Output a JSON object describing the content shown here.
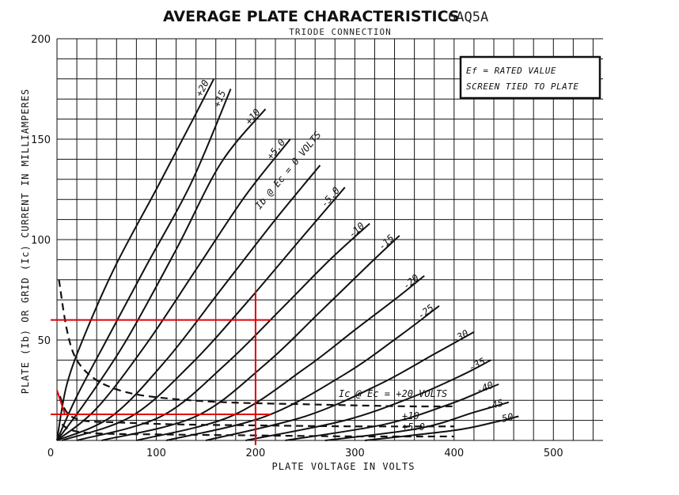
{
  "chart_data": {
    "type": "line",
    "title": "AVERAGE PLATE CHARACTERISTICS",
    "tube_type": "6AQ5A",
    "subtitle": "TRIODE CONNECTION",
    "xlabel": "PLATE VOLTAGE IN VOLTS",
    "ylabel": "PLATE (Ib) OR GRID (Ic) CURRENT IN MILLIAMPERES",
    "xlim": [
      0,
      550
    ],
    "ylim": [
      0,
      200
    ],
    "x_ticks": [
      "0",
      "100",
      "200",
      "300",
      "400",
      "500"
    ],
    "y_ticks": [
      "50",
      "100",
      "150",
      "200"
    ],
    "grid": true,
    "notes": [
      "Ef = RATED VALUE",
      "SCREEN TIED TO PLATE"
    ],
    "plate_family_label": "Ib @ Ec = 0 VOLTS",
    "grid_family_label": "Ic @ Ec = +20 VOLTS",
    "plate_curves": [
      {
        "label": "+20",
        "points": [
          [
            0,
            0
          ],
          [
            10,
            28
          ],
          [
            30,
            55
          ],
          [
            60,
            88
          ],
          [
            100,
            125
          ],
          [
            135,
            158
          ],
          [
            158,
            180
          ]
        ]
      },
      {
        "label": "+15",
        "points": [
          [
            0,
            0
          ],
          [
            20,
            22
          ],
          [
            50,
            50
          ],
          [
            90,
            87
          ],
          [
            135,
            128
          ],
          [
            175,
            175
          ]
        ]
      },
      {
        "label": "+10",
        "points": [
          [
            0,
            0
          ],
          [
            30,
            20
          ],
          [
            70,
            50
          ],
          [
            120,
            95
          ],
          [
            165,
            138
          ],
          [
            210,
            165
          ]
        ]
      },
      {
        "label": "+5.0",
        "points": [
          [
            0,
            0
          ],
          [
            40,
            16
          ],
          [
            90,
            48
          ],
          [
            140,
            85
          ],
          [
            190,
            122
          ],
          [
            235,
            150
          ]
        ]
      },
      {
        "label": "0",
        "points": [
          [
            0,
            0
          ],
          [
            55,
            12
          ],
          [
            110,
            40
          ],
          [
            165,
            75
          ],
          [
            220,
            110
          ],
          [
            265,
            137
          ]
        ]
      },
      {
        "label": "-5.0",
        "points": [
          [
            5,
            0
          ],
          [
            75,
            12
          ],
          [
            135,
            38
          ],
          [
            190,
            68
          ],
          [
            245,
            100
          ],
          [
            290,
            126
          ]
        ]
      },
      {
        "label": "-10",
        "points": [
          [
            20,
            0
          ],
          [
            105,
            12
          ],
          [
            170,
            38
          ],
          [
            225,
            65
          ],
          [
            275,
            90
          ],
          [
            315,
            108
          ]
        ]
      },
      {
        "label": "-15",
        "points": [
          [
            45,
            0
          ],
          [
            140,
            12
          ],
          [
            210,
            38
          ],
          [
            265,
            64
          ],
          [
            315,
            88
          ],
          [
            345,
            102
          ]
        ]
      },
      {
        "label": "-20",
        "points": [
          [
            80,
            0
          ],
          [
            175,
            12
          ],
          [
            250,
            36
          ],
          [
            300,
            55
          ],
          [
            345,
            72
          ],
          [
            370,
            82
          ]
        ]
      },
      {
        "label": "-25",
        "points": [
          [
            110,
            0
          ],
          [
            210,
            12
          ],
          [
            290,
            33
          ],
          [
            345,
            52
          ],
          [
            385,
            67
          ]
        ]
      },
      {
        "label": "-30",
        "points": [
          [
            150,
            0
          ],
          [
            250,
            12
          ],
          [
            325,
            28
          ],
          [
            380,
            43
          ],
          [
            420,
            54
          ]
        ]
      },
      {
        "label": "-35",
        "points": [
          [
            190,
            0
          ],
          [
            290,
            10
          ],
          [
            360,
            22
          ],
          [
            410,
            33
          ],
          [
            437,
            40
          ]
        ]
      },
      {
        "label": "-40",
        "points": [
          [
            230,
            0
          ],
          [
            330,
            8
          ],
          [
            395,
            18
          ],
          [
            430,
            25
          ],
          [
            445,
            28
          ]
        ]
      },
      {
        "label": "-45",
        "points": [
          [
            270,
            0
          ],
          [
            365,
            6
          ],
          [
            420,
            14
          ],
          [
            455,
            19
          ]
        ]
      },
      {
        "label": "-50",
        "points": [
          [
            310,
            0
          ],
          [
            400,
            5
          ],
          [
            440,
            9
          ],
          [
            465,
            12
          ]
        ]
      }
    ],
    "grid_curves": [
      {
        "label": "+20",
        "points": [
          [
            2,
            80
          ],
          [
            10,
            55
          ],
          [
            20,
            40
          ],
          [
            40,
            30
          ],
          [
            70,
            24
          ],
          [
            110,
            21
          ],
          [
            170,
            19
          ],
          [
            250,
            18
          ],
          [
            350,
            17
          ],
          [
            400,
            17
          ]
        ]
      },
      {
        "label": "+10",
        "points": [
          [
            3,
            22
          ],
          [
            10,
            14
          ],
          [
            25,
            10
          ],
          [
            60,
            9
          ],
          [
            120,
            8
          ],
          [
            200,
            7.5
          ],
          [
            300,
            7
          ],
          [
            400,
            7
          ]
        ]
      },
      {
        "label": "+5.0",
        "points": [
          [
            5,
            8
          ],
          [
            15,
            5
          ],
          [
            40,
            3.5
          ],
          [
            100,
            3
          ],
          [
            200,
            2.5
          ],
          [
            300,
            2
          ],
          [
            400,
            2
          ]
        ]
      }
    ],
    "grid_curve_labels": [
      "+10",
      "+5.0"
    ],
    "markers": {
      "color": "#e00000",
      "vertical_x": 200,
      "horizontal_y": [
        60,
        13
      ]
    }
  }
}
